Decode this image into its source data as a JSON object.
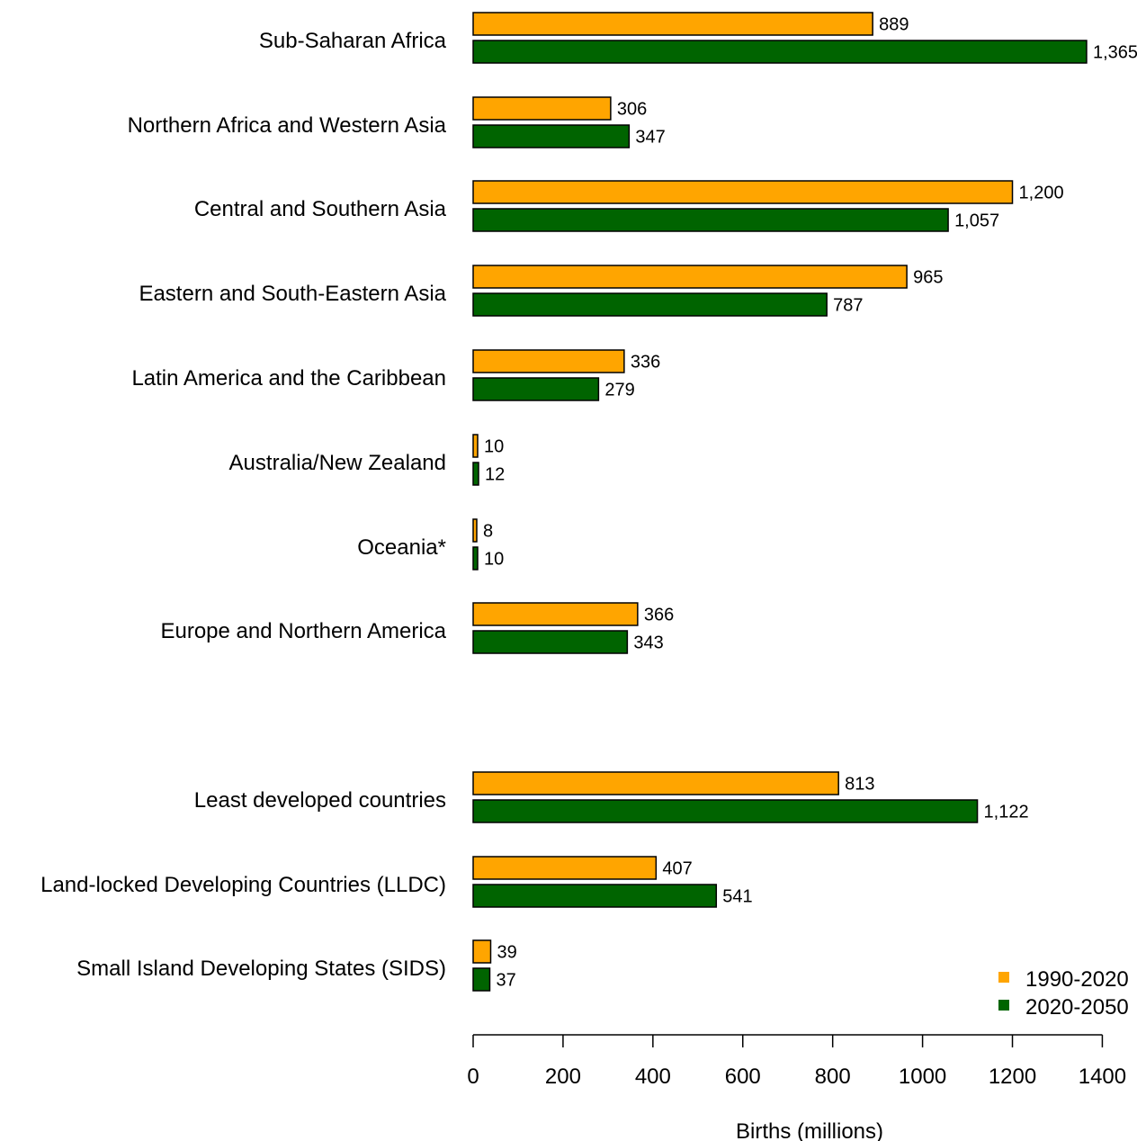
{
  "chart_data": {
    "type": "bar",
    "orientation": "horizontal",
    "xlabel": "Births (millions)",
    "xlim": [
      0,
      1400
    ],
    "xticks": [
      0,
      200,
      400,
      600,
      800,
      1000,
      1200,
      1400
    ],
    "xtick_labels": [
      "0",
      "200",
      "400",
      "600",
      "800",
      "1000",
      "1200",
      "1400"
    ],
    "grid": false,
    "legend_position": "bottom-right",
    "categories": [
      "Sub-Saharan Africa",
      "Northern Africa and Western Asia",
      "Central and Southern Asia",
      "Eastern and South-Eastern Asia",
      "Latin America and the Caribbean",
      "Australia/New Zealand",
      "Oceania*",
      "Europe and Northern America",
      "Least developed countries",
      "Land-locked Developing Countries (LLDC)",
      "Small Island Developing States (SIDS)"
    ],
    "groups": [
      {
        "categories": [
          0,
          1,
          2,
          3,
          4,
          5,
          6,
          7
        ]
      },
      {
        "categories": [
          8,
          9,
          10
        ]
      }
    ],
    "series": [
      {
        "name": "1990-2020",
        "color": "#FFA500",
        "values": [
          889,
          306,
          1200,
          965,
          336,
          10,
          8,
          366,
          813,
          407,
          39
        ],
        "labels": [
          "889",
          "306",
          "1,200",
          "965",
          "336",
          "10",
          "8",
          "366",
          "813",
          "407",
          "39"
        ]
      },
      {
        "name": "2020-2050",
        "color": "#006400",
        "values": [
          1365,
          347,
          1057,
          787,
          279,
          12,
          10,
          343,
          1122,
          541,
          37
        ],
        "labels": [
          "1,365",
          "347",
          "1,057",
          "787",
          "279",
          "12",
          "10",
          "343",
          "1,122",
          "541",
          "37"
        ]
      }
    ]
  }
}
